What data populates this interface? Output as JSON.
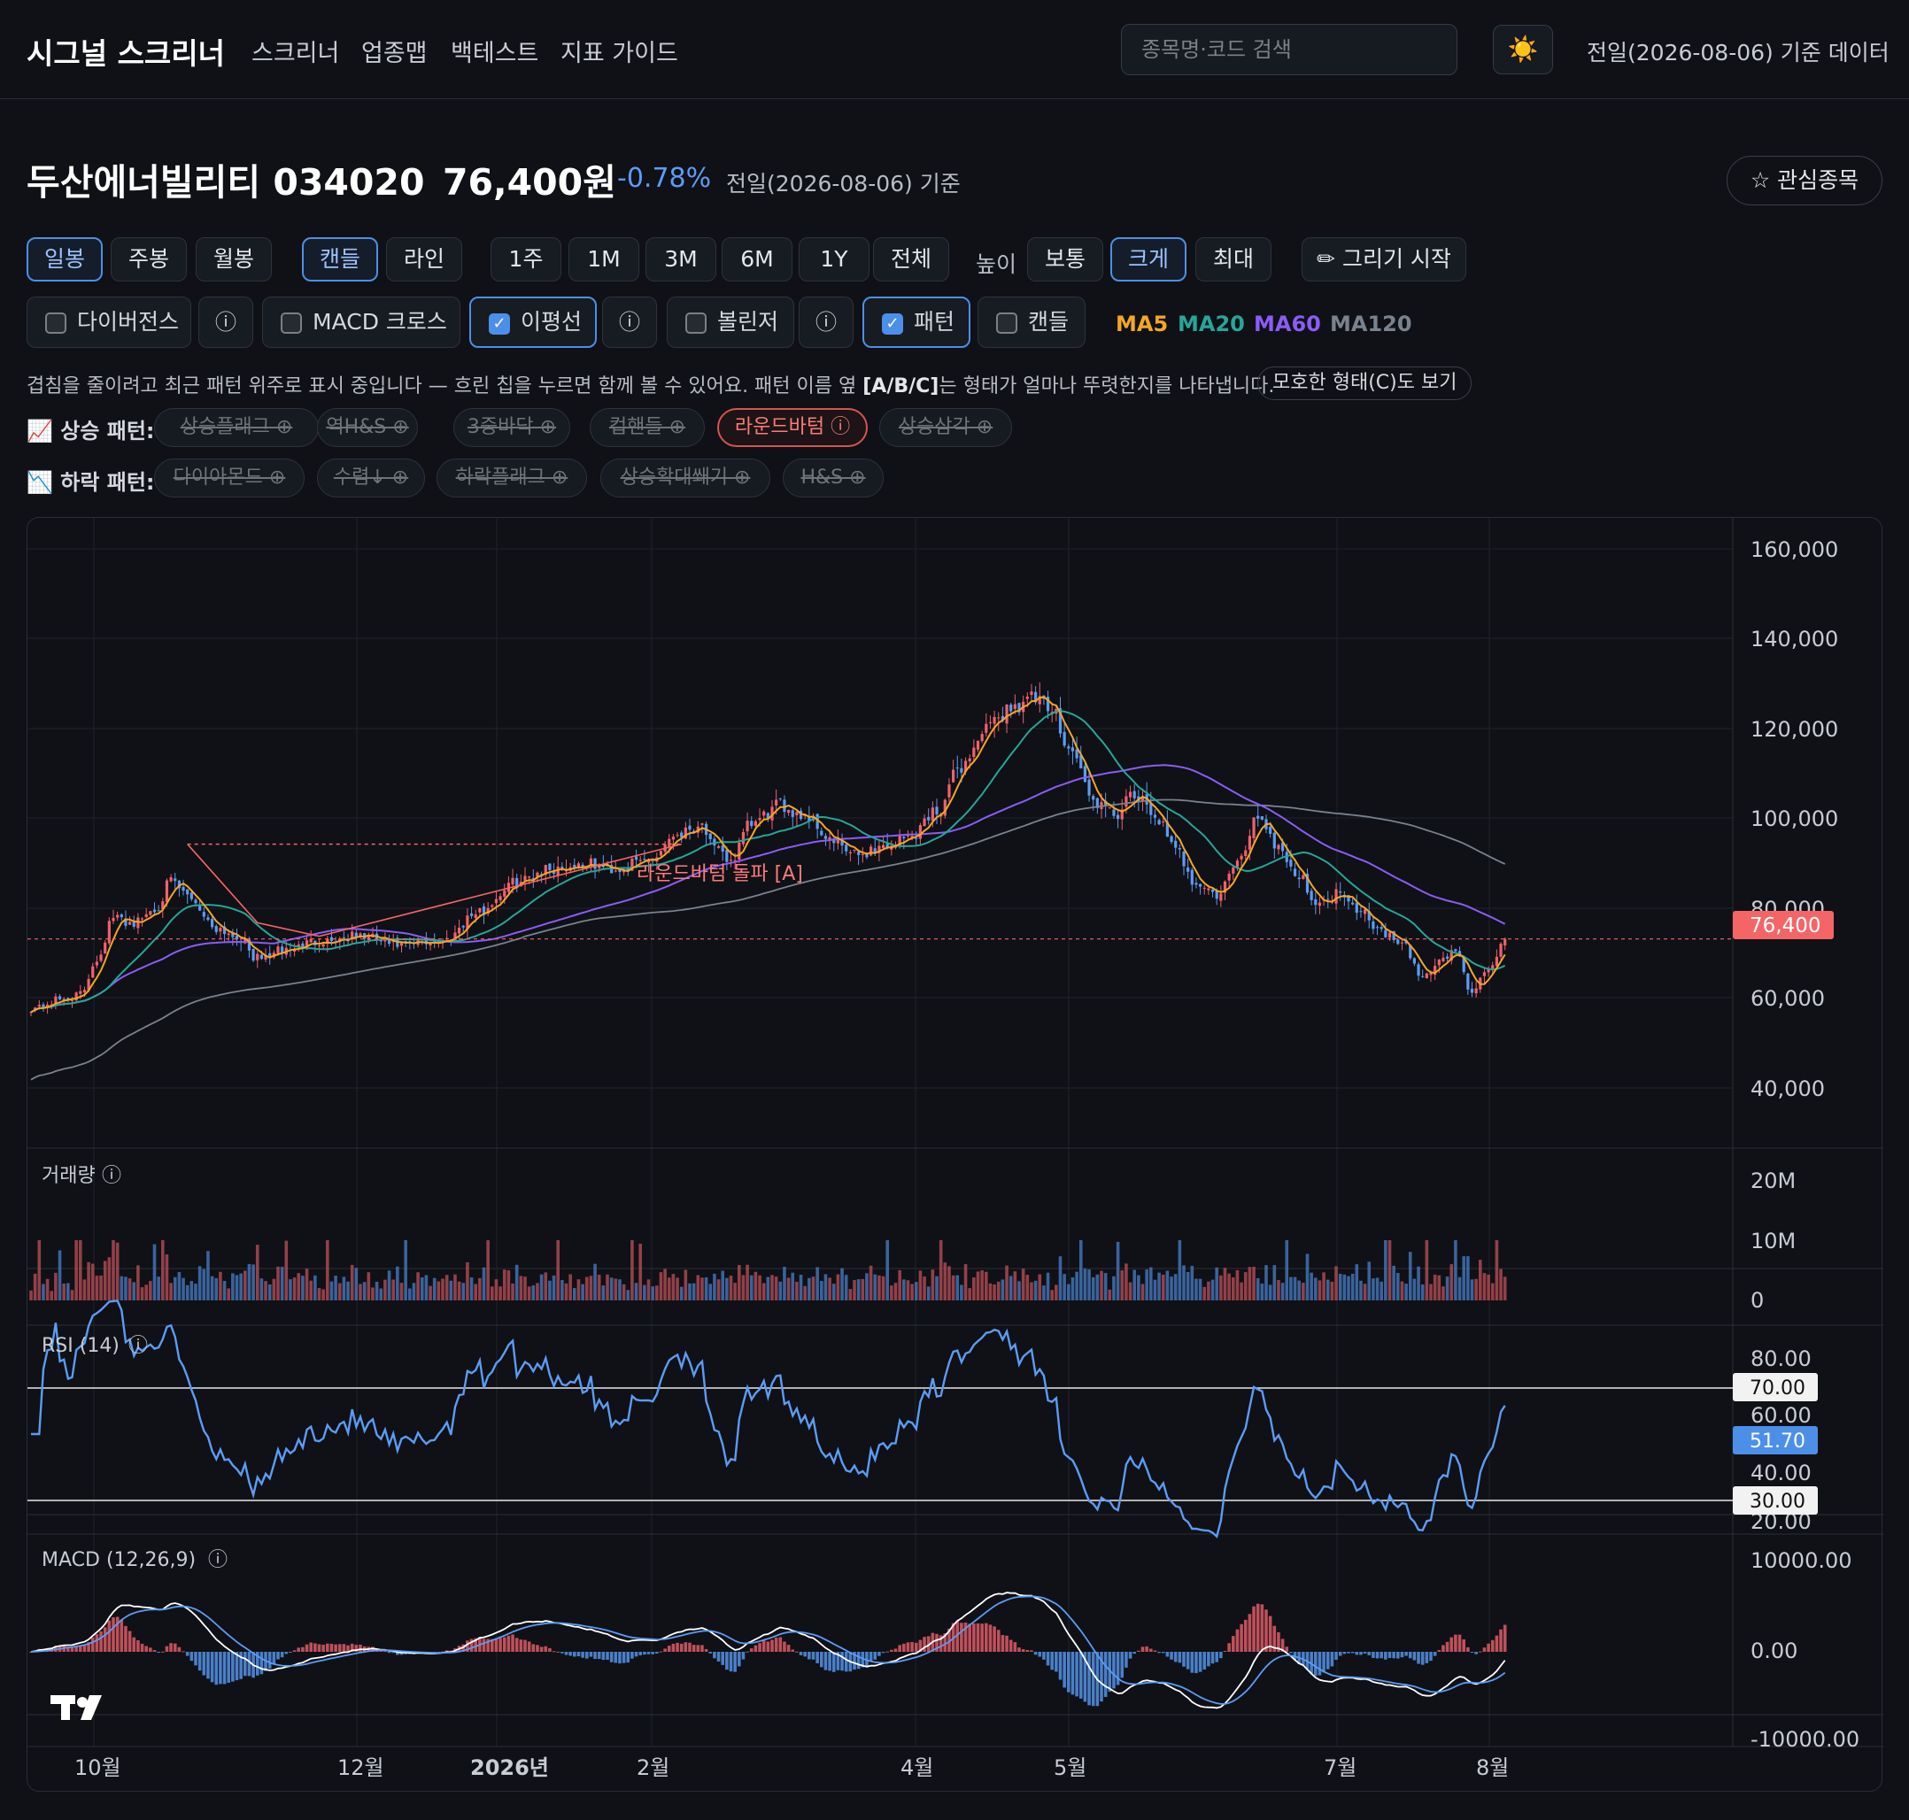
{
  "nav": {
    "brand": "시그널 스크리너",
    "links": [
      "스크리너",
      "업종맵",
      "백테스트",
      "지표 가이드"
    ],
    "search_placeholder": "종목명·코드 검색",
    "theme_icon": "☀️",
    "data_date": "전일(2026-08-06) 기준 데이터"
  },
  "stock": {
    "name": "두산에너빌리티 034020",
    "price": "76,400원",
    "change": "-0.78%",
    "date": "전일(2026-08-06) 기준",
    "favorite_label": "☆ 관심종목"
  },
  "controls": {
    "periods": [
      "일봉",
      "주봉",
      "월봉"
    ],
    "active_period": "일봉",
    "chart_types": [
      "캔들",
      "라인"
    ],
    "active_chart_type": "캔들",
    "ranges": [
      "1주",
      "1M",
      "3M",
      "6M",
      "1Y",
      "전체"
    ],
    "height_label": "높이",
    "heights": [
      "보통",
      "크게",
      "최대"
    ],
    "active_height": "크게",
    "draw_label": "✏ 그리기 시작"
  },
  "toggles": [
    {
      "label": "다이버전스",
      "checked": false,
      "info": true
    },
    {
      "label": "MACD 크로스",
      "checked": false,
      "info": false
    },
    {
      "label": "이평선",
      "checked": true,
      "info": true
    },
    {
      "label": "볼린저",
      "checked": false,
      "info": true
    },
    {
      "label": "패턴",
      "checked": true,
      "info": false
    },
    {
      "label": "캔들",
      "checked": false,
      "info": false
    }
  ],
  "ma_legend": [
    {
      "label": "MA5",
      "color": "#f5a623"
    },
    {
      "label": "MA20",
      "color": "#26a69a"
    },
    {
      "label": "MA60",
      "color": "#8b5cf6"
    },
    {
      "label": "MA120",
      "color": "#7a828e"
    }
  ],
  "pattern_hint": {
    "text_pre": "겹침을 줄이려고 최근 패턴 위주로 표시 중입니다 — 흐린 칩을 누르면 함께 볼 수 있어요. 패턴 이름 옆 ",
    "text_bold": "[A/B/C]",
    "text_post": "는 형태가 얼마나 뚜렷한지를 나타냅니다.",
    "ambiguous_button": "모호한 형태(C)도 보기"
  },
  "patterns": {
    "up_label": "📈 상승 패턴:",
    "up": [
      {
        "label": "상승플래그 ⊕",
        "active": false
      },
      {
        "label": "역H&S ⊕",
        "active": false
      },
      {
        "label": "3중바닥 ⊕",
        "active": false
      },
      {
        "label": "컵핸들 ⊕",
        "active": false
      },
      {
        "label": "라운드바텀 ⓘ",
        "active": true
      },
      {
        "label": "상승삼각 ⊕",
        "active": false
      }
    ],
    "down_label": "📉 하락 패턴:",
    "down": [
      {
        "label": "다이아몬드 ⊕",
        "active": false
      },
      {
        "label": "수렴↓ ⊕",
        "active": false
      },
      {
        "label": "하락플래그 ⊕",
        "active": false
      },
      {
        "label": "상승확대쐐기 ⊕",
        "active": false
      },
      {
        "label": "H&S ⊕",
        "active": false
      }
    ]
  },
  "chart_data": {
    "type": "candlestick",
    "price_axis": {
      "ticks": [
        "160,000",
        "140,000",
        "120,000",
        "100,000",
        "80,000",
        "60,000",
        "40,000"
      ],
      "range": [
        30000,
        165000
      ]
    },
    "current_price_label": "76,400",
    "current_price": 76400,
    "pattern_annotation": "라운드바텀 돌파 [A]",
    "pattern_neckline": 97500,
    "x_ticks": [
      "10월",
      "12월",
      "2026년",
      "2월",
      "4월",
      "5월",
      "7월",
      "8월"
    ],
    "close_anchors": [
      [
        0,
        61000
      ],
      [
        8,
        63000
      ],
      [
        12,
        64000
      ],
      [
        16,
        72000
      ],
      [
        20,
        81000
      ],
      [
        25,
        80000
      ],
      [
        30,
        83000
      ],
      [
        34,
        89000
      ],
      [
        38,
        86000
      ],
      [
        45,
        79000
      ],
      [
        50,
        77000
      ],
      [
        55,
        72000
      ],
      [
        62,
        74000
      ],
      [
        70,
        76000
      ],
      [
        80,
        77000
      ],
      [
        90,
        75000
      ],
      [
        100,
        76000
      ],
      [
        108,
        82000
      ],
      [
        118,
        89000
      ],
      [
        125,
        92000
      ],
      [
        135,
        93000
      ],
      [
        142,
        92000
      ],
      [
        150,
        94000
      ],
      [
        157,
        100000
      ],
      [
        163,
        102000
      ],
      [
        166,
        96000
      ],
      [
        170,
        94000
      ],
      [
        175,
        102000
      ],
      [
        182,
        106000
      ],
      [
        188,
        104000
      ],
      [
        195,
        98000
      ],
      [
        200,
        95000
      ],
      [
        207,
        97000
      ],
      [
        213,
        99000
      ],
      [
        220,
        105000
      ],
      [
        226,
        115000
      ],
      [
        232,
        123000
      ],
      [
        238,
        128000
      ],
      [
        243,
        130000
      ],
      [
        248,
        127000
      ],
      [
        253,
        118000
      ],
      [
        258,
        107000
      ],
      [
        263,
        104000
      ],
      [
        268,
        108000
      ],
      [
        273,
        104000
      ],
      [
        278,
        96000
      ],
      [
        283,
        89000
      ],
      [
        288,
        86000
      ],
      [
        293,
        93000
      ],
      [
        298,
        104000
      ],
      [
        303,
        97000
      ],
      [
        308,
        90000
      ],
      [
        313,
        84000
      ],
      [
        318,
        87000
      ],
      [
        323,
        83000
      ],
      [
        328,
        78000
      ],
      [
        333,
        75000
      ],
      [
        338,
        68000
      ],
      [
        343,
        72000
      ],
      [
        346,
        74000
      ],
      [
        350,
        64000
      ],
      [
        354,
        70000
      ],
      [
        358,
        76400
      ]
    ],
    "volume": {
      "label": "거래량",
      "ticks": [
        "20M",
        "10M",
        "0"
      ]
    },
    "rsi": {
      "label": "RSI (14)",
      "ticks": [
        "80.00",
        "60.00",
        "40.00",
        "20.00"
      ],
      "upper": "70.00",
      "lower": "30.00",
      "current": "51.70"
    },
    "macd": {
      "label": "MACD (12,26,9)",
      "ticks": [
        "10000.00",
        "0.00",
        "-10000.00"
      ]
    }
  }
}
